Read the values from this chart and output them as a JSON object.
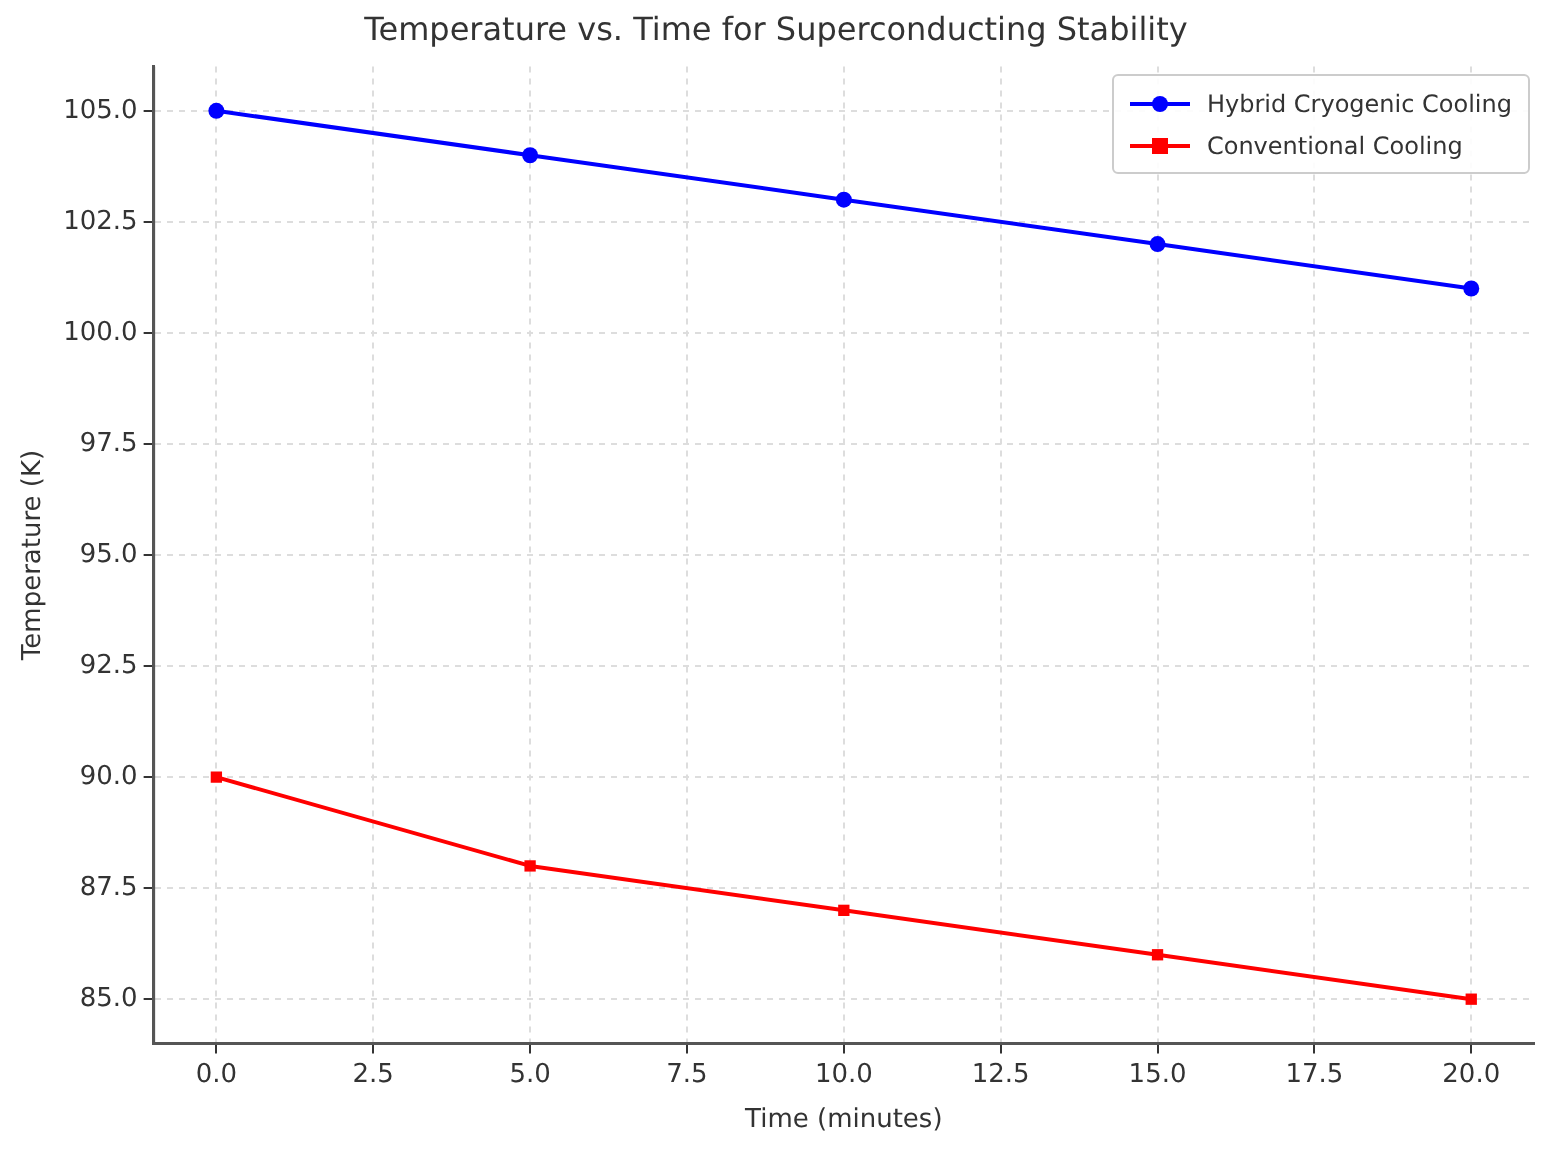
{
  "chart_data": {
    "type": "line",
    "title": "Temperature vs. Time for Superconducting Stability",
    "xlabel": "Time (minutes)",
    "ylabel": "Temperature (K)",
    "x": [
      0,
      5,
      10,
      15,
      20
    ],
    "series": [
      {
        "name": "Hybrid Cryogenic Cooling",
        "color": "#0000ff",
        "marker": "circle",
        "values": [
          105,
          104,
          103,
          102,
          101
        ]
      },
      {
        "name": "Conventional Cooling",
        "color": "#ff0000",
        "marker": "square",
        "values": [
          90,
          88,
          87,
          86,
          85
        ]
      }
    ],
    "xlim": [
      -1,
      21
    ],
    "xticks": [
      {
        "value": 0,
        "label": "0.0"
      },
      {
        "value": 2.5,
        "label": "2.5"
      },
      {
        "value": 5,
        "label": "5.0"
      },
      {
        "value": 7.5,
        "label": "7.5"
      },
      {
        "value": 10,
        "label": "10.0"
      },
      {
        "value": 12.5,
        "label": "12.5"
      },
      {
        "value": 15,
        "label": "15.0"
      },
      {
        "value": 17.5,
        "label": "17.5"
      },
      {
        "value": 20,
        "label": "20.0"
      }
    ],
    "ylim": [
      84,
      106
    ],
    "yticks": [
      {
        "value": 85,
        "label": "85.0"
      },
      {
        "value": 87.5,
        "label": "87.5"
      },
      {
        "value": 90,
        "label": "90.0"
      },
      {
        "value": 92.5,
        "label": "92.5"
      },
      {
        "value": 95,
        "label": "95.0"
      },
      {
        "value": 97.5,
        "label": "97.5"
      },
      {
        "value": 100,
        "label": "100.0"
      },
      {
        "value": 102.5,
        "label": "102.5"
      },
      {
        "value": 105,
        "label": "105.0"
      }
    ],
    "grid": true,
    "legend": "top right",
    "line_style": "solid"
  }
}
